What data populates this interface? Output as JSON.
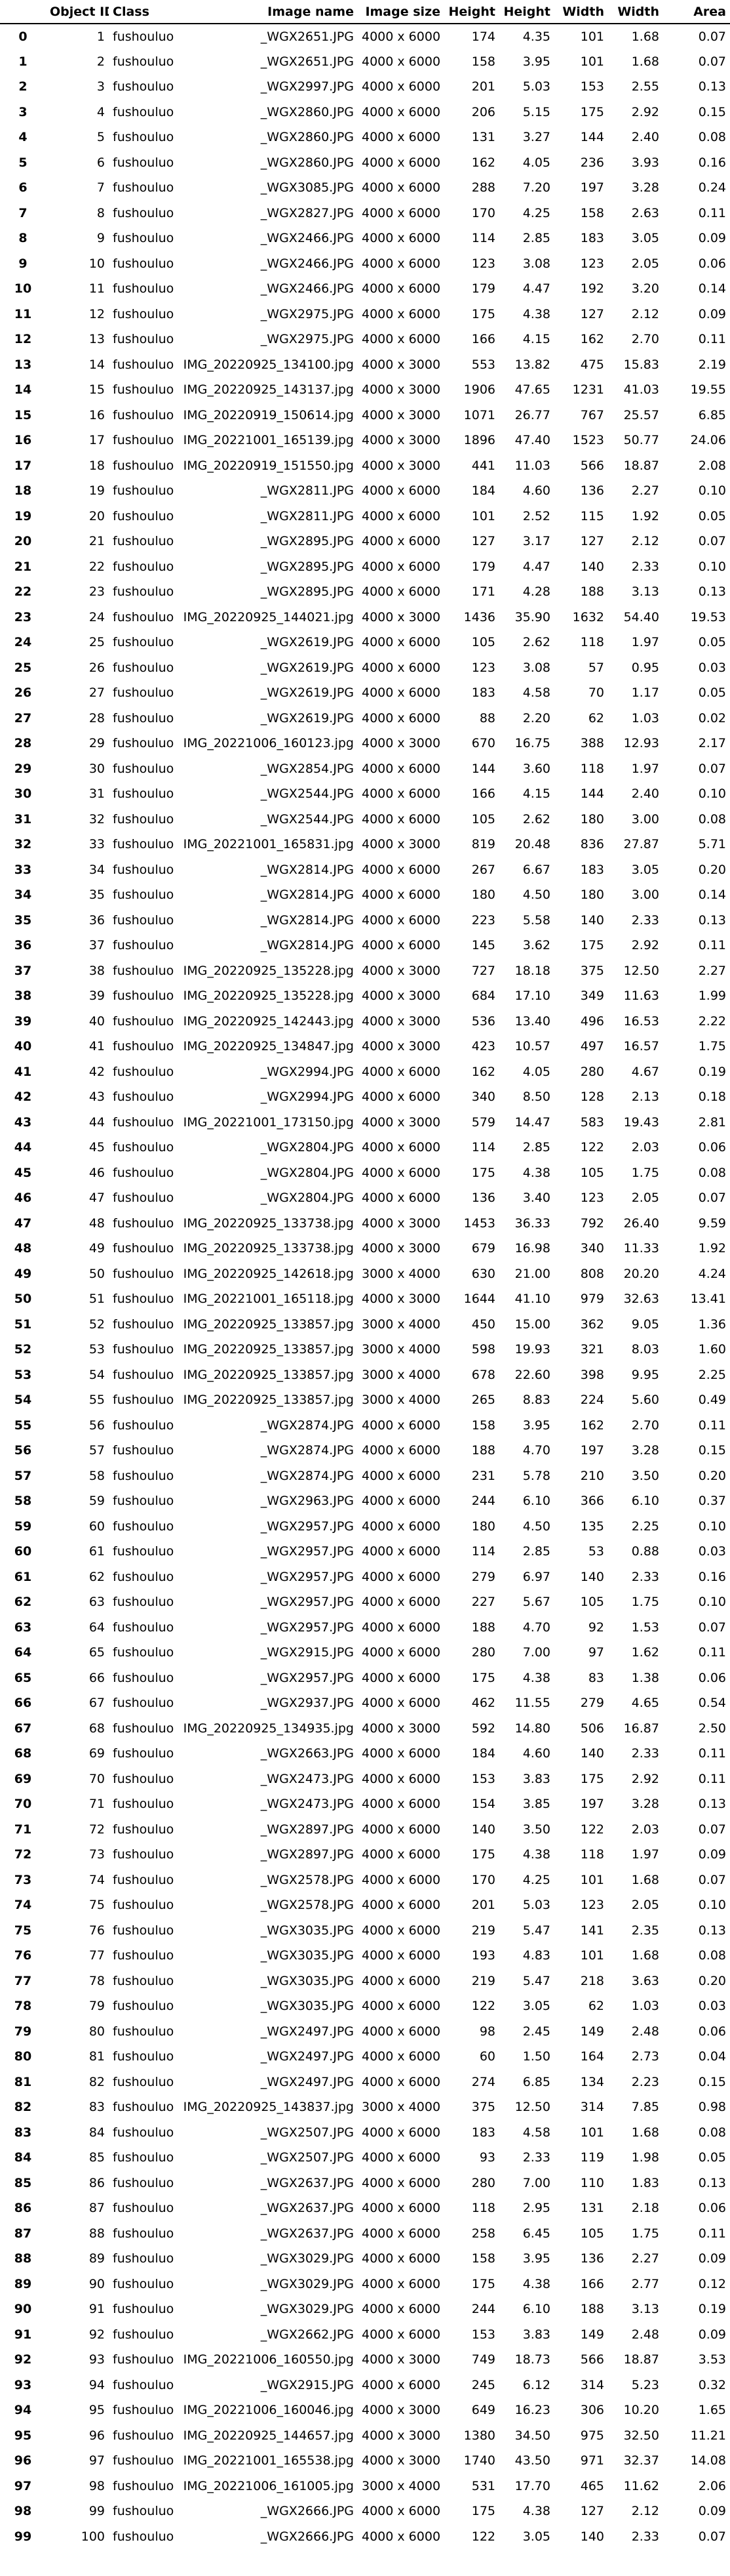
{
  "table": {
    "headers": [
      "",
      "Object ID",
      "Class",
      "Image name",
      "Image size",
      "Height",
      "Height",
      "Width",
      "Width",
      "Area"
    ],
    "rows": [
      [
        "0",
        "1",
        "fushouluo",
        "_WGX2651.JPG",
        "4000 x 6000",
        "174",
        "4.35",
        "101",
        "1.68",
        "0.07"
      ],
      [
        "1",
        "2",
        "fushouluo",
        "_WGX2651.JPG",
        "4000 x 6000",
        "158",
        "3.95",
        "101",
        "1.68",
        "0.07"
      ],
      [
        "2",
        "3",
        "fushouluo",
        "_WGX2997.JPG",
        "4000 x 6000",
        "201",
        "5.03",
        "153",
        "2.55",
        "0.13"
      ],
      [
        "3",
        "4",
        "fushouluo",
        "_WGX2860.JPG",
        "4000 x 6000",
        "206",
        "5.15",
        "175",
        "2.92",
        "0.15"
      ],
      [
        "4",
        "5",
        "fushouluo",
        "_WGX2860.JPG",
        "4000 x 6000",
        "131",
        "3.27",
        "144",
        "2.40",
        "0.08"
      ],
      [
        "5",
        "6",
        "fushouluo",
        "_WGX2860.JPG",
        "4000 x 6000",
        "162",
        "4.05",
        "236",
        "3.93",
        "0.16"
      ],
      [
        "6",
        "7",
        "fushouluo",
        "_WGX3085.JPG",
        "4000 x 6000",
        "288",
        "7.20",
        "197",
        "3.28",
        "0.24"
      ],
      [
        "7",
        "8",
        "fushouluo",
        "_WGX2827.JPG",
        "4000 x 6000",
        "170",
        "4.25",
        "158",
        "2.63",
        "0.11"
      ],
      [
        "8",
        "9",
        "fushouluo",
        "_WGX2466.JPG",
        "4000 x 6000",
        "114",
        "2.85",
        "183",
        "3.05",
        "0.09"
      ],
      [
        "9",
        "10",
        "fushouluo",
        "_WGX2466.JPG",
        "4000 x 6000",
        "123",
        "3.08",
        "123",
        "2.05",
        "0.06"
      ],
      [
        "10",
        "11",
        "fushouluo",
        "_WGX2466.JPG",
        "4000 x 6000",
        "179",
        "4.47",
        "192",
        "3.20",
        "0.14"
      ],
      [
        "11",
        "12",
        "fushouluo",
        "_WGX2975.JPG",
        "4000 x 6000",
        "175",
        "4.38",
        "127",
        "2.12",
        "0.09"
      ],
      [
        "12",
        "13",
        "fushouluo",
        "_WGX2975.JPG",
        "4000 x 6000",
        "166",
        "4.15",
        "162",
        "2.70",
        "0.11"
      ],
      [
        "13",
        "14",
        "fushouluo",
        "IMG_20220925_134100.jpg",
        "4000 x 3000",
        "553",
        "13.82",
        "475",
        "15.83",
        "2.19"
      ],
      [
        "14",
        "15",
        "fushouluo",
        "IMG_20220925_143137.jpg",
        "4000 x 3000",
        "1906",
        "47.65",
        "1231",
        "41.03",
        "19.55"
      ],
      [
        "15",
        "16",
        "fushouluo",
        "IMG_20220919_150614.jpg",
        "4000 x 3000",
        "1071",
        "26.77",
        "767",
        "25.57",
        "6.85"
      ],
      [
        "16",
        "17",
        "fushouluo",
        "IMG_20221001_165139.jpg",
        "4000 x 3000",
        "1896",
        "47.40",
        "1523",
        "50.77",
        "24.06"
      ],
      [
        "17",
        "18",
        "fushouluo",
        "IMG_20220919_151550.jpg",
        "4000 x 3000",
        "441",
        "11.03",
        "566",
        "18.87",
        "2.08"
      ],
      [
        "18",
        "19",
        "fushouluo",
        "_WGX2811.JPG",
        "4000 x 6000",
        "184",
        "4.60",
        "136",
        "2.27",
        "0.10"
      ],
      [
        "19",
        "20",
        "fushouluo",
        "_WGX2811.JPG",
        "4000 x 6000",
        "101",
        "2.52",
        "115",
        "1.92",
        "0.05"
      ],
      [
        "20",
        "21",
        "fushouluo",
        "_WGX2895.JPG",
        "4000 x 6000",
        "127",
        "3.17",
        "127",
        "2.12",
        "0.07"
      ],
      [
        "21",
        "22",
        "fushouluo",
        "_WGX2895.JPG",
        "4000 x 6000",
        "179",
        "4.47",
        "140",
        "2.33",
        "0.10"
      ],
      [
        "22",
        "23",
        "fushouluo",
        "_WGX2895.JPG",
        "4000 x 6000",
        "171",
        "4.28",
        "188",
        "3.13",
        "0.13"
      ],
      [
        "23",
        "24",
        "fushouluo",
        "IMG_20220925_144021.jpg",
        "4000 x 3000",
        "1436",
        "35.90",
        "1632",
        "54.40",
        "19.53"
      ],
      [
        "24",
        "25",
        "fushouluo",
        "_WGX2619.JPG",
        "4000 x 6000",
        "105",
        "2.62",
        "118",
        "1.97",
        "0.05"
      ],
      [
        "25",
        "26",
        "fushouluo",
        "_WGX2619.JPG",
        "4000 x 6000",
        "123",
        "3.08",
        "57",
        "0.95",
        "0.03"
      ],
      [
        "26",
        "27",
        "fushouluo",
        "_WGX2619.JPG",
        "4000 x 6000",
        "183",
        "4.58",
        "70",
        "1.17",
        "0.05"
      ],
      [
        "27",
        "28",
        "fushouluo",
        "_WGX2619.JPG",
        "4000 x 6000",
        "88",
        "2.20",
        "62",
        "1.03",
        "0.02"
      ],
      [
        "28",
        "29",
        "fushouluo",
        "IMG_20221006_160123.jpg",
        "4000 x 3000",
        "670",
        "16.75",
        "388",
        "12.93",
        "2.17"
      ],
      [
        "29",
        "30",
        "fushouluo",
        "_WGX2854.JPG",
        "4000 x 6000",
        "144",
        "3.60",
        "118",
        "1.97",
        "0.07"
      ],
      [
        "30",
        "31",
        "fushouluo",
        "_WGX2544.JPG",
        "4000 x 6000",
        "166",
        "4.15",
        "144",
        "2.40",
        "0.10"
      ],
      [
        "31",
        "32",
        "fushouluo",
        "_WGX2544.JPG",
        "4000 x 6000",
        "105",
        "2.62",
        "180",
        "3.00",
        "0.08"
      ],
      [
        "32",
        "33",
        "fushouluo",
        "IMG_20221001_165831.jpg",
        "4000 x 3000",
        "819",
        "20.48",
        "836",
        "27.87",
        "5.71"
      ],
      [
        "33",
        "34",
        "fushouluo",
        "_WGX2814.JPG",
        "4000 x 6000",
        "267",
        "6.67",
        "183",
        "3.05",
        "0.20"
      ],
      [
        "34",
        "35",
        "fushouluo",
        "_WGX2814.JPG",
        "4000 x 6000",
        "180",
        "4.50",
        "180",
        "3.00",
        "0.14"
      ],
      [
        "35",
        "36",
        "fushouluo",
        "_WGX2814.JPG",
        "4000 x 6000",
        "223",
        "5.58",
        "140",
        "2.33",
        "0.13"
      ],
      [
        "36",
        "37",
        "fushouluo",
        "_WGX2814.JPG",
        "4000 x 6000",
        "145",
        "3.62",
        "175",
        "2.92",
        "0.11"
      ],
      [
        "37",
        "38",
        "fushouluo",
        "IMG_20220925_135228.jpg",
        "4000 x 3000",
        "727",
        "18.18",
        "375",
        "12.50",
        "2.27"
      ],
      [
        "38",
        "39",
        "fushouluo",
        "IMG_20220925_135228.jpg",
        "4000 x 3000",
        "684",
        "17.10",
        "349",
        "11.63",
        "1.99"
      ],
      [
        "39",
        "40",
        "fushouluo",
        "IMG_20220925_142443.jpg",
        "4000 x 3000",
        "536",
        "13.40",
        "496",
        "16.53",
        "2.22"
      ],
      [
        "40",
        "41",
        "fushouluo",
        "IMG_20220925_134847.jpg",
        "4000 x 3000",
        "423",
        "10.57",
        "497",
        "16.57",
        "1.75"
      ],
      [
        "41",
        "42",
        "fushouluo",
        "_WGX2994.JPG",
        "4000 x 6000",
        "162",
        "4.05",
        "280",
        "4.67",
        "0.19"
      ],
      [
        "42",
        "43",
        "fushouluo",
        "_WGX2994.JPG",
        "4000 x 6000",
        "340",
        "8.50",
        "128",
        "2.13",
        "0.18"
      ],
      [
        "43",
        "44",
        "fushouluo",
        "IMG_20221001_173150.jpg",
        "4000 x 3000",
        "579",
        "14.47",
        "583",
        "19.43",
        "2.81"
      ],
      [
        "44",
        "45",
        "fushouluo",
        "_WGX2804.JPG",
        "4000 x 6000",
        "114",
        "2.85",
        "122",
        "2.03",
        "0.06"
      ],
      [
        "45",
        "46",
        "fushouluo",
        "_WGX2804.JPG",
        "4000 x 6000",
        "175",
        "4.38",
        "105",
        "1.75",
        "0.08"
      ],
      [
        "46",
        "47",
        "fushouluo",
        "_WGX2804.JPG",
        "4000 x 6000",
        "136",
        "3.40",
        "123",
        "2.05",
        "0.07"
      ],
      [
        "47",
        "48",
        "fushouluo",
        "IMG_20220925_133738.jpg",
        "4000 x 3000",
        "1453",
        "36.33",
        "792",
        "26.40",
        "9.59"
      ],
      [
        "48",
        "49",
        "fushouluo",
        "IMG_20220925_133738.jpg",
        "4000 x 3000",
        "679",
        "16.98",
        "340",
        "11.33",
        "1.92"
      ],
      [
        "49",
        "50",
        "fushouluo",
        "IMG_20220925_142618.jpg",
        "3000 x 4000",
        "630",
        "21.00",
        "808",
        "20.20",
        "4.24"
      ],
      [
        "50",
        "51",
        "fushouluo",
        "IMG_20221001_165118.jpg",
        "4000 x 3000",
        "1644",
        "41.10",
        "979",
        "32.63",
        "13.41"
      ],
      [
        "51",
        "52",
        "fushouluo",
        "IMG_20220925_133857.jpg",
        "3000 x 4000",
        "450",
        "15.00",
        "362",
        "9.05",
        "1.36"
      ],
      [
        "52",
        "53",
        "fushouluo",
        "IMG_20220925_133857.jpg",
        "3000 x 4000",
        "598",
        "19.93",
        "321",
        "8.03",
        "1.60"
      ],
      [
        "53",
        "54",
        "fushouluo",
        "IMG_20220925_133857.jpg",
        "3000 x 4000",
        "678",
        "22.60",
        "398",
        "9.95",
        "2.25"
      ],
      [
        "54",
        "55",
        "fushouluo",
        "IMG_20220925_133857.jpg",
        "3000 x 4000",
        "265",
        "8.83",
        "224",
        "5.60",
        "0.49"
      ],
      [
        "55",
        "56",
        "fushouluo",
        "_WGX2874.JPG",
        "4000 x 6000",
        "158",
        "3.95",
        "162",
        "2.70",
        "0.11"
      ],
      [
        "56",
        "57",
        "fushouluo",
        "_WGX2874.JPG",
        "4000 x 6000",
        "188",
        "4.70",
        "197",
        "3.28",
        "0.15"
      ],
      [
        "57",
        "58",
        "fushouluo",
        "_WGX2874.JPG",
        "4000 x 6000",
        "231",
        "5.78",
        "210",
        "3.50",
        "0.20"
      ],
      [
        "58",
        "59",
        "fushouluo",
        "_WGX2963.JPG",
        "4000 x 6000",
        "244",
        "6.10",
        "366",
        "6.10",
        "0.37"
      ],
      [
        "59",
        "60",
        "fushouluo",
        "_WGX2957.JPG",
        "4000 x 6000",
        "180",
        "4.50",
        "135",
        "2.25",
        "0.10"
      ],
      [
        "60",
        "61",
        "fushouluo",
        "_WGX2957.JPG",
        "4000 x 6000",
        "114",
        "2.85",
        "53",
        "0.88",
        "0.03"
      ],
      [
        "61",
        "62",
        "fushouluo",
        "_WGX2957.JPG",
        "4000 x 6000",
        "279",
        "6.97",
        "140",
        "2.33",
        "0.16"
      ],
      [
        "62",
        "63",
        "fushouluo",
        "_WGX2957.JPG",
        "4000 x 6000",
        "227",
        "5.67",
        "105",
        "1.75",
        "0.10"
      ],
      [
        "63",
        "64",
        "fushouluo",
        "_WGX2957.JPG",
        "4000 x 6000",
        "188",
        "4.70",
        "92",
        "1.53",
        "0.07"
      ],
      [
        "64",
        "65",
        "fushouluo",
        "_WGX2915.JPG",
        "4000 x 6000",
        "280",
        "7.00",
        "97",
        "1.62",
        "0.11"
      ],
      [
        "65",
        "66",
        "fushouluo",
        "_WGX2957.JPG",
        "4000 x 6000",
        "175",
        "4.38",
        "83",
        "1.38",
        "0.06"
      ],
      [
        "66",
        "67",
        "fushouluo",
        "_WGX2937.JPG",
        "4000 x 6000",
        "462",
        "11.55",
        "279",
        "4.65",
        "0.54"
      ],
      [
        "67",
        "68",
        "fushouluo",
        "IMG_20220925_134935.jpg",
        "4000 x 3000",
        "592",
        "14.80",
        "506",
        "16.87",
        "2.50"
      ],
      [
        "68",
        "69",
        "fushouluo",
        "_WGX2663.JPG",
        "4000 x 6000",
        "184",
        "4.60",
        "140",
        "2.33",
        "0.11"
      ],
      [
        "69",
        "70",
        "fushouluo",
        "_WGX2473.JPG",
        "4000 x 6000",
        "153",
        "3.83",
        "175",
        "2.92",
        "0.11"
      ],
      [
        "70",
        "71",
        "fushouluo",
        "_WGX2473.JPG",
        "4000 x 6000",
        "154",
        "3.85",
        "197",
        "3.28",
        "0.13"
      ],
      [
        "71",
        "72",
        "fushouluo",
        "_WGX2897.JPG",
        "4000 x 6000",
        "140",
        "3.50",
        "122",
        "2.03",
        "0.07"
      ],
      [
        "72",
        "73",
        "fushouluo",
        "_WGX2897.JPG",
        "4000 x 6000",
        "175",
        "4.38",
        "118",
        "1.97",
        "0.09"
      ],
      [
        "73",
        "74",
        "fushouluo",
        "_WGX2578.JPG",
        "4000 x 6000",
        "170",
        "4.25",
        "101",
        "1.68",
        "0.07"
      ],
      [
        "74",
        "75",
        "fushouluo",
        "_WGX2578.JPG",
        "4000 x 6000",
        "201",
        "5.03",
        "123",
        "2.05",
        "0.10"
      ],
      [
        "75",
        "76",
        "fushouluo",
        "_WGX3035.JPG",
        "4000 x 6000",
        "219",
        "5.47",
        "141",
        "2.35",
        "0.13"
      ],
      [
        "76",
        "77",
        "fushouluo",
        "_WGX3035.JPG",
        "4000 x 6000",
        "193",
        "4.83",
        "101",
        "1.68",
        "0.08"
      ],
      [
        "77",
        "78",
        "fushouluo",
        "_WGX3035.JPG",
        "4000 x 6000",
        "219",
        "5.47",
        "218",
        "3.63",
        "0.20"
      ],
      [
        "78",
        "79",
        "fushouluo",
        "_WGX3035.JPG",
        "4000 x 6000",
        "122",
        "3.05",
        "62",
        "1.03",
        "0.03"
      ],
      [
        "79",
        "80",
        "fushouluo",
        "_WGX2497.JPG",
        "4000 x 6000",
        "98",
        "2.45",
        "149",
        "2.48",
        "0.06"
      ],
      [
        "80",
        "81",
        "fushouluo",
        "_WGX2497.JPG",
        "4000 x 6000",
        "60",
        "1.50",
        "164",
        "2.73",
        "0.04"
      ],
      [
        "81",
        "82",
        "fushouluo",
        "_WGX2497.JPG",
        "4000 x 6000",
        "274",
        "6.85",
        "134",
        "2.23",
        "0.15"
      ],
      [
        "82",
        "83",
        "fushouluo",
        "IMG_20220925_143837.jpg",
        "3000 x 4000",
        "375",
        "12.50",
        "314",
        "7.85",
        "0.98"
      ],
      [
        "83",
        "84",
        "fushouluo",
        "_WGX2507.JPG",
        "4000 x 6000",
        "183",
        "4.58",
        "101",
        "1.68",
        "0.08"
      ],
      [
        "84",
        "85",
        "fushouluo",
        "_WGX2507.JPG",
        "4000 x 6000",
        "93",
        "2.33",
        "119",
        "1.98",
        "0.05"
      ],
      [
        "85",
        "86",
        "fushouluo",
        "_WGX2637.JPG",
        "4000 x 6000",
        "280",
        "7.00",
        "110",
        "1.83",
        "0.13"
      ],
      [
        "86",
        "87",
        "fushouluo",
        "_WGX2637.JPG",
        "4000 x 6000",
        "118",
        "2.95",
        "131",
        "2.18",
        "0.06"
      ],
      [
        "87",
        "88",
        "fushouluo",
        "_WGX2637.JPG",
        "4000 x 6000",
        "258",
        "6.45",
        "105",
        "1.75",
        "0.11"
      ],
      [
        "88",
        "89",
        "fushouluo",
        "_WGX3029.JPG",
        "4000 x 6000",
        "158",
        "3.95",
        "136",
        "2.27",
        "0.09"
      ],
      [
        "89",
        "90",
        "fushouluo",
        "_WGX3029.JPG",
        "4000 x 6000",
        "175",
        "4.38",
        "166",
        "2.77",
        "0.12"
      ],
      [
        "90",
        "91",
        "fushouluo",
        "_WGX3029.JPG",
        "4000 x 6000",
        "244",
        "6.10",
        "188",
        "3.13",
        "0.19"
      ],
      [
        "91",
        "92",
        "fushouluo",
        "_WGX2662.JPG",
        "4000 x 6000",
        "153",
        "3.83",
        "149",
        "2.48",
        "0.09"
      ],
      [
        "92",
        "93",
        "fushouluo",
        "IMG_20221006_160550.jpg",
        "4000 x 3000",
        "749",
        "18.73",
        "566",
        "18.87",
        "3.53"
      ],
      [
        "93",
        "94",
        "fushouluo",
        "_WGX2915.JPG",
        "4000 x 6000",
        "245",
        "6.12",
        "314",
        "5.23",
        "0.32"
      ],
      [
        "94",
        "95",
        "fushouluo",
        "IMG_20221006_160046.jpg",
        "4000 x 3000",
        "649",
        "16.23",
        "306",
        "10.20",
        "1.65"
      ],
      [
        "95",
        "96",
        "fushouluo",
        "IMG_20220925_144657.jpg",
        "4000 x 3000",
        "1380",
        "34.50",
        "975",
        "32.50",
        "11.21"
      ],
      [
        "96",
        "97",
        "fushouluo",
        "IMG_20221001_165538.jpg",
        "4000 x 3000",
        "1740",
        "43.50",
        "971",
        "32.37",
        "14.08"
      ],
      [
        "97",
        "98",
        "fushouluo",
        "IMG_20221006_161005.jpg",
        "3000 x 4000",
        "531",
        "17.70",
        "465",
        "11.62",
        "2.06"
      ],
      [
        "98",
        "99",
        "fushouluo",
        "_WGX2666.JPG",
        "4000 x 6000",
        "175",
        "4.38",
        "127",
        "2.12",
        "0.09"
      ],
      [
        "99",
        "100",
        "fushouluo",
        "_WGX2666.JPG",
        "4000 x 6000",
        "122",
        "3.05",
        "140",
        "2.33",
        "0.07"
      ]
    ]
  }
}
